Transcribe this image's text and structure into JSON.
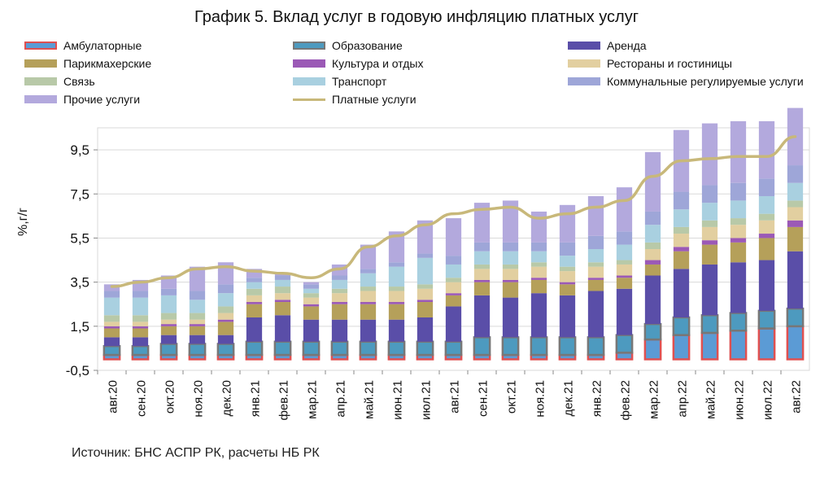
{
  "chart_data": {
    "type": "bar",
    "title": "График 5. Вклад услуг в годовую инфляцию платных услуг",
    "ylabel": "%,г/г",
    "ylim": [
      -0.5,
      10.5
    ],
    "yticks": [
      "9,5",
      "7,5",
      "5,5",
      "3,5",
      "1,5",
      "-0,5"
    ],
    "ytick_values": [
      9.5,
      7.5,
      5.5,
      3.5,
      1.5,
      -0.5
    ],
    "categories": [
      "авг.20",
      "сен.20",
      "окт.20",
      "ноя.20",
      "дек.20",
      "янв.21",
      "фев.21",
      "мар.21",
      "апр.21",
      "май.21",
      "июн.21",
      "июл.21",
      "авг.21",
      "сен.21",
      "окт.21",
      "ноя.21",
      "дек.21",
      "янв.22",
      "фев.22",
      "мар.22",
      "апр.22",
      "май.22",
      "июн.22",
      "июл.22",
      "авг.22"
    ],
    "series": [
      {
        "name": "Амбулаторные",
        "color": "#5b9bd5",
        "border": "#e05050",
        "values": [
          0.2,
          0.2,
          0.2,
          0.2,
          0.2,
          0.2,
          0.2,
          0.2,
          0.2,
          0.2,
          0.2,
          0.2,
          0.2,
          0.2,
          0.2,
          0.2,
          0.2,
          0.2,
          0.3,
          0.9,
          1.1,
          1.2,
          1.3,
          1.4,
          1.5
        ]
      },
      {
        "name": "Образование",
        "color": "#4d9abf",
        "border": "#777777",
        "values": [
          0.4,
          0.4,
          0.5,
          0.5,
          0.5,
          0.6,
          0.6,
          0.6,
          0.6,
          0.6,
          0.6,
          0.6,
          0.6,
          0.8,
          0.8,
          0.8,
          0.8,
          0.8,
          0.8,
          0.7,
          0.8,
          0.8,
          0.8,
          0.8,
          0.8
        ]
      },
      {
        "name": "Аренда",
        "color": "#5a4ea8",
        "values": [
          0.4,
          0.4,
          0.4,
          0.4,
          0.4,
          1.1,
          1.2,
          1.0,
          1.0,
          1.0,
          1.0,
          1.1,
          1.6,
          1.9,
          1.8,
          2.0,
          1.9,
          2.1,
          2.1,
          2.2,
          2.2,
          2.3,
          2.3,
          2.3,
          2.6
        ]
      },
      {
        "name": "Парикмахерские",
        "color": "#b5a05a",
        "values": [
          0.4,
          0.4,
          0.4,
          0.4,
          0.6,
          0.6,
          0.6,
          0.6,
          0.7,
          0.7,
          0.7,
          0.7,
          0.5,
          0.6,
          0.7,
          0.6,
          0.5,
          0.5,
          0.5,
          0.5,
          0.8,
          0.9,
          0.9,
          1.0,
          1.1
        ]
      },
      {
        "name": "Культура и отдых",
        "color": "#9b59b6",
        "values": [
          0.1,
          0.1,
          0.1,
          0.1,
          0.1,
          0.1,
          0.1,
          0.1,
          0.1,
          0.1,
          0.1,
          0.1,
          0.1,
          0.1,
          0.1,
          0.1,
          0.1,
          0.1,
          0.1,
          0.2,
          0.2,
          0.2,
          0.2,
          0.2,
          0.3
        ]
      },
      {
        "name": "Рестораны и гостиницы",
        "color": "#e2cfa0",
        "values": [
          0.2,
          0.2,
          0.2,
          0.2,
          0.3,
          0.3,
          0.3,
          0.3,
          0.4,
          0.5,
          0.5,
          0.5,
          0.5,
          0.5,
          0.5,
          0.5,
          0.5,
          0.5,
          0.5,
          0.5,
          0.6,
          0.6,
          0.6,
          0.6,
          0.6
        ]
      },
      {
        "name": "Связь",
        "color": "#b8c9a8",
        "values": [
          0.3,
          0.3,
          0.3,
          0.3,
          0.3,
          0.3,
          0.3,
          0.2,
          0.2,
          0.2,
          0.2,
          0.2,
          0.2,
          0.2,
          0.2,
          0.2,
          0.2,
          0.2,
          0.2,
          0.3,
          0.3,
          0.3,
          0.3,
          0.3,
          0.3
        ]
      },
      {
        "name": "Транспорт",
        "color": "#a9d0e0",
        "values": [
          0.8,
          0.8,
          0.8,
          0.6,
          0.6,
          0.3,
          0.3,
          0.2,
          0.4,
          0.6,
          0.9,
          1.2,
          0.6,
          0.6,
          0.6,
          0.5,
          0.5,
          0.6,
          0.7,
          0.8,
          0.8,
          0.8,
          0.8,
          0.8,
          0.8
        ]
      },
      {
        "name": "Коммунальные регулируемые услуги",
        "color": "#9ea6d8",
        "values": [
          0.3,
          0.3,
          0.3,
          0.4,
          0.4,
          0.2,
          0.2,
          0.2,
          0.2,
          0.2,
          0.2,
          0.2,
          0.4,
          0.4,
          0.4,
          0.4,
          0.6,
          0.6,
          0.6,
          0.6,
          0.8,
          0.8,
          0.8,
          0.8,
          0.8
        ]
      },
      {
        "name": "Прочие услуги",
        "color": "#b3a9dd",
        "values": [
          0.3,
          0.5,
          0.6,
          1.1,
          1.0,
          0.4,
          0.1,
          0.1,
          0.5,
          1.1,
          1.4,
          1.5,
          1.7,
          1.8,
          1.9,
          1.4,
          1.7,
          1.8,
          2.0,
          2.7,
          2.8,
          2.8,
          2.8,
          2.6,
          2.6
        ]
      },
      {
        "name": "Платные услуги",
        "type": "line",
        "color": "#c8b87a",
        "values": [
          3.3,
          3.5,
          3.7,
          4.1,
          4.2,
          4.0,
          3.9,
          3.7,
          4.1,
          5.1,
          5.6,
          6.1,
          6.6,
          6.8,
          6.9,
          6.4,
          6.6,
          6.9,
          7.2,
          8.3,
          9.0,
          9.1,
          9.2,
          9.2,
          10.1
        ]
      }
    ]
  },
  "source": "Источник: БНС АСПР РК, расчеты НБ РК"
}
